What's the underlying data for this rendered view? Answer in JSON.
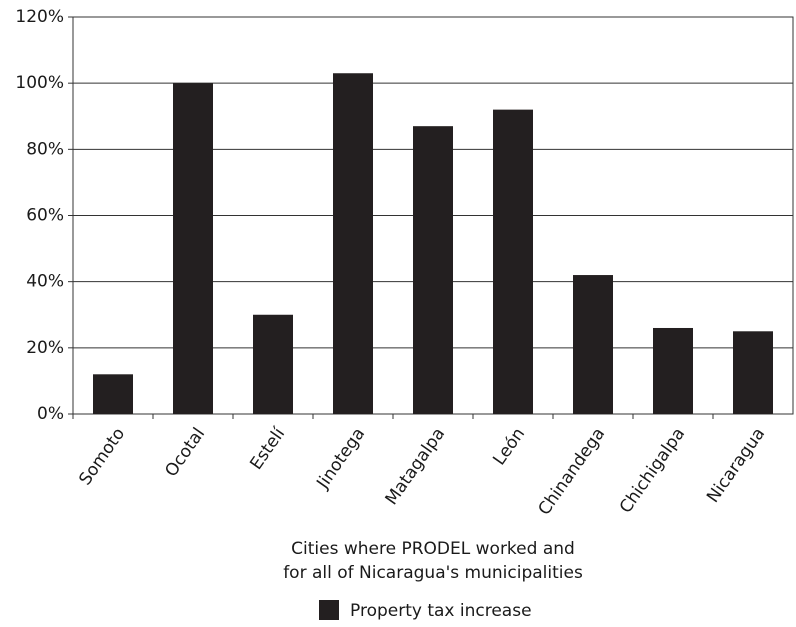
{
  "chart_data": {
    "type": "bar",
    "categories": [
      "Somoto",
      "Ocotal",
      "Estelí",
      "Jinotega",
      "Matagalpa",
      "León",
      "Chinandega",
      "Chichigalpa",
      "Nicaragua"
    ],
    "series": [
      {
        "name": "Property tax increase",
        "color": "#231f20",
        "values": [
          12,
          100,
          30,
          103,
          87,
          92,
          42,
          26,
          25
        ]
      }
    ],
    "ylim": [
      0,
      120
    ],
    "yticks": [
      {
        "value": 0,
        "label": "0%"
      },
      {
        "value": 20,
        "label": "20%"
      },
      {
        "value": 40,
        "label": "40%"
      },
      {
        "value": 60,
        "label": "60%"
      },
      {
        "value": 80,
        "label": "80%"
      },
      {
        "value": 100,
        "label": "100%"
      },
      {
        "value": 120,
        "label": "120%"
      }
    ],
    "x_label": [
      "Cities where PRODEL worked and",
      "for all of Nicaragua's municipalities"
    ],
    "grid": true,
    "legend": "bottom"
  }
}
